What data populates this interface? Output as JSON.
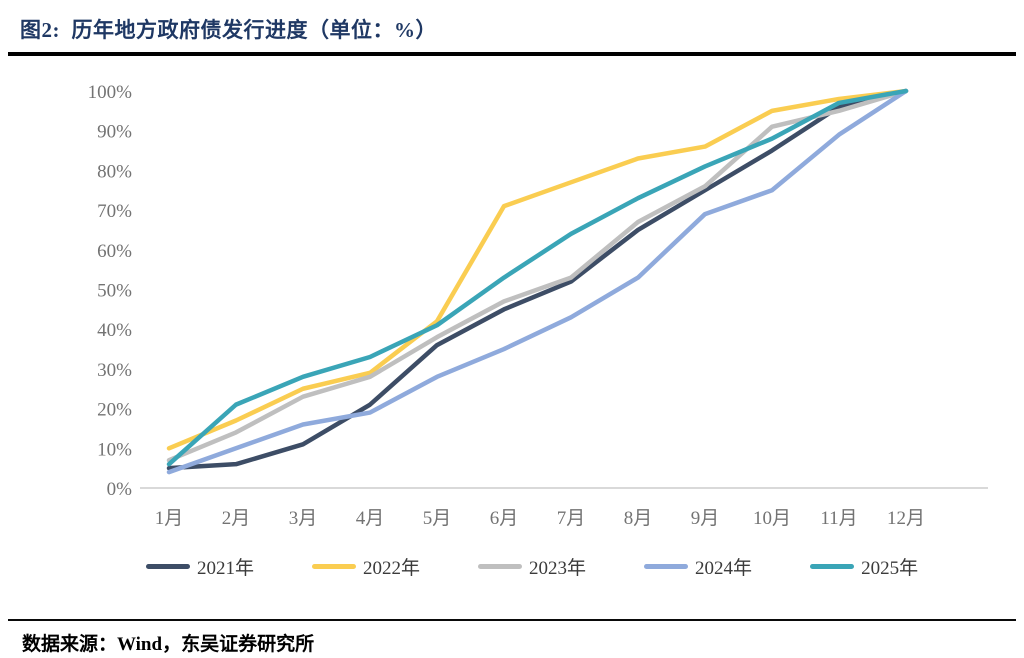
{
  "header": {
    "title": "图2:  历年地方政府债发行进度（单位：%）"
  },
  "footer": {
    "source": "数据来源：Wind，东吴证券研究所"
  },
  "chart_data": {
    "type": "line",
    "title": "历年地方政府债发行进度",
    "unit": "%",
    "xlabel": "",
    "ylabel": "",
    "ylim": [
      0,
      100
    ],
    "grid": false,
    "legend_position": "bottom",
    "categories": [
      "1月",
      "2月",
      "3月",
      "4月",
      "5月",
      "6月",
      "7月",
      "8月",
      "9月",
      "10月",
      "11月",
      "12月"
    ],
    "yticks": [
      "0%",
      "10%",
      "20%",
      "30%",
      "40%",
      "50%",
      "60%",
      "70%",
      "80%",
      "90%",
      "100%"
    ],
    "series": [
      {
        "name": "2021年",
        "color": "#3d4d66",
        "values": [
          5,
          6,
          11,
          21,
          36,
          45,
          52,
          65,
          75,
          85,
          96,
          100
        ]
      },
      {
        "name": "2022年",
        "color": "#facd51",
        "values": [
          10,
          17,
          25,
          29,
          42,
          71,
          77,
          83,
          86,
          95,
          98,
          100
        ]
      },
      {
        "name": "2023年",
        "color": "#bfbfbf",
        "values": [
          7,
          14,
          23,
          28,
          38,
          47,
          53,
          67,
          76,
          91,
          95,
          100
        ]
      },
      {
        "name": "2024年",
        "color": "#8faadc",
        "values": [
          4,
          10,
          16,
          19,
          28,
          35,
          43,
          53,
          69,
          75,
          89,
          100
        ]
      },
      {
        "name": "2025年",
        "color": "#3aa5b7",
        "values": [
          6,
          21,
          28,
          33,
          41,
          53,
          64,
          73,
          81,
          88,
          97,
          100
        ]
      }
    ],
    "axis_color": "#d9d9d9"
  }
}
